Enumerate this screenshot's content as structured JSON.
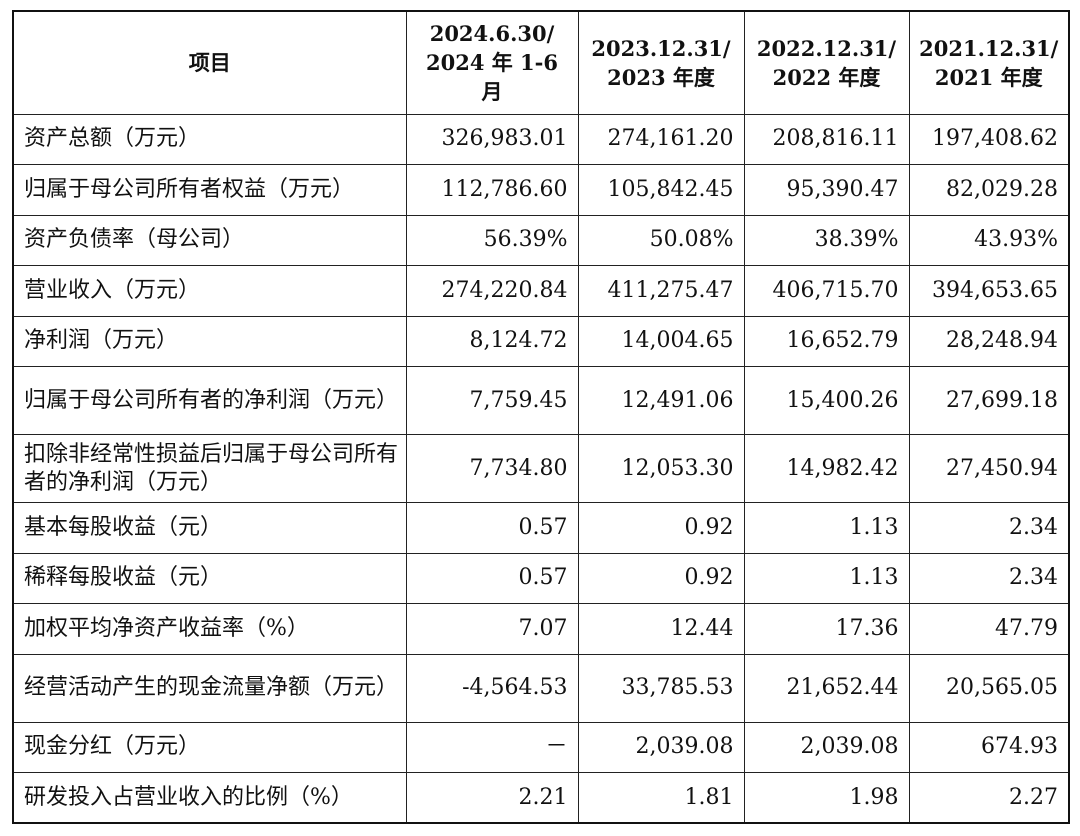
{
  "table": {
    "headers": [
      [
        "项目"
      ],
      [
        "2024.6.30/",
        "2024 年 1-6",
        "月"
      ],
      [
        "2023.12.31/",
        "2023 年度"
      ],
      [
        "2022.12.31/",
        "2022 年度"
      ],
      [
        "2021.12.31/",
        "2021 年度"
      ]
    ],
    "rows": [
      {
        "label": "资产总额（万元）",
        "values": [
          "326,983.01",
          "274,161.20",
          "208,816.11",
          "197,408.62"
        ]
      },
      {
        "label": "归属于母公司所有者权益（万元）",
        "values": [
          "112,786.60",
          "105,842.45",
          "95,390.47",
          "82,029.28"
        ]
      },
      {
        "label": "资产负债率（母公司）",
        "values": [
          "56.39%",
          "50.08%",
          "38.39%",
          "43.93%"
        ]
      },
      {
        "label": "营业收入（万元）",
        "values": [
          "274,220.84",
          "411,275.47",
          "406,715.70",
          "394,653.65"
        ]
      },
      {
        "label": "净利润（万元）",
        "values": [
          "8,124.72",
          "14,004.65",
          "16,652.79",
          "28,248.94"
        ]
      },
      {
        "label": "归属于母公司所有者的净利润（万元）",
        "values": [
          "7,759.45",
          "12,491.06",
          "15,400.26",
          "27,699.18"
        ]
      },
      {
        "label": "扣除非经常性损益后归属于母公司所有者的净利润（万元）",
        "values": [
          "7,734.80",
          "12,053.30",
          "14,982.42",
          "27,450.94"
        ]
      },
      {
        "label": "基本每股收益（元）",
        "values": [
          "0.57",
          "0.92",
          "1.13",
          "2.34"
        ]
      },
      {
        "label": "稀释每股收益（元）",
        "values": [
          "0.57",
          "0.92",
          "1.13",
          "2.34"
        ]
      },
      {
        "label": "加权平均净资产收益率（%）",
        "values": [
          "7.07",
          "12.44",
          "17.36",
          "47.79"
        ]
      },
      {
        "label": "经营活动产生的现金流量净额（万元）",
        "values": [
          "-4,564.53",
          "33,785.53",
          "21,652.44",
          "20,565.05"
        ]
      },
      {
        "label": "现金分红（万元）",
        "values": [
          "－",
          "2,039.08",
          "2,039.08",
          "674.93"
        ]
      },
      {
        "label": "研发投入占营业收入的比例（%）",
        "values": [
          "2.21",
          "1.81",
          "1.98",
          "2.27"
        ]
      }
    ]
  }
}
